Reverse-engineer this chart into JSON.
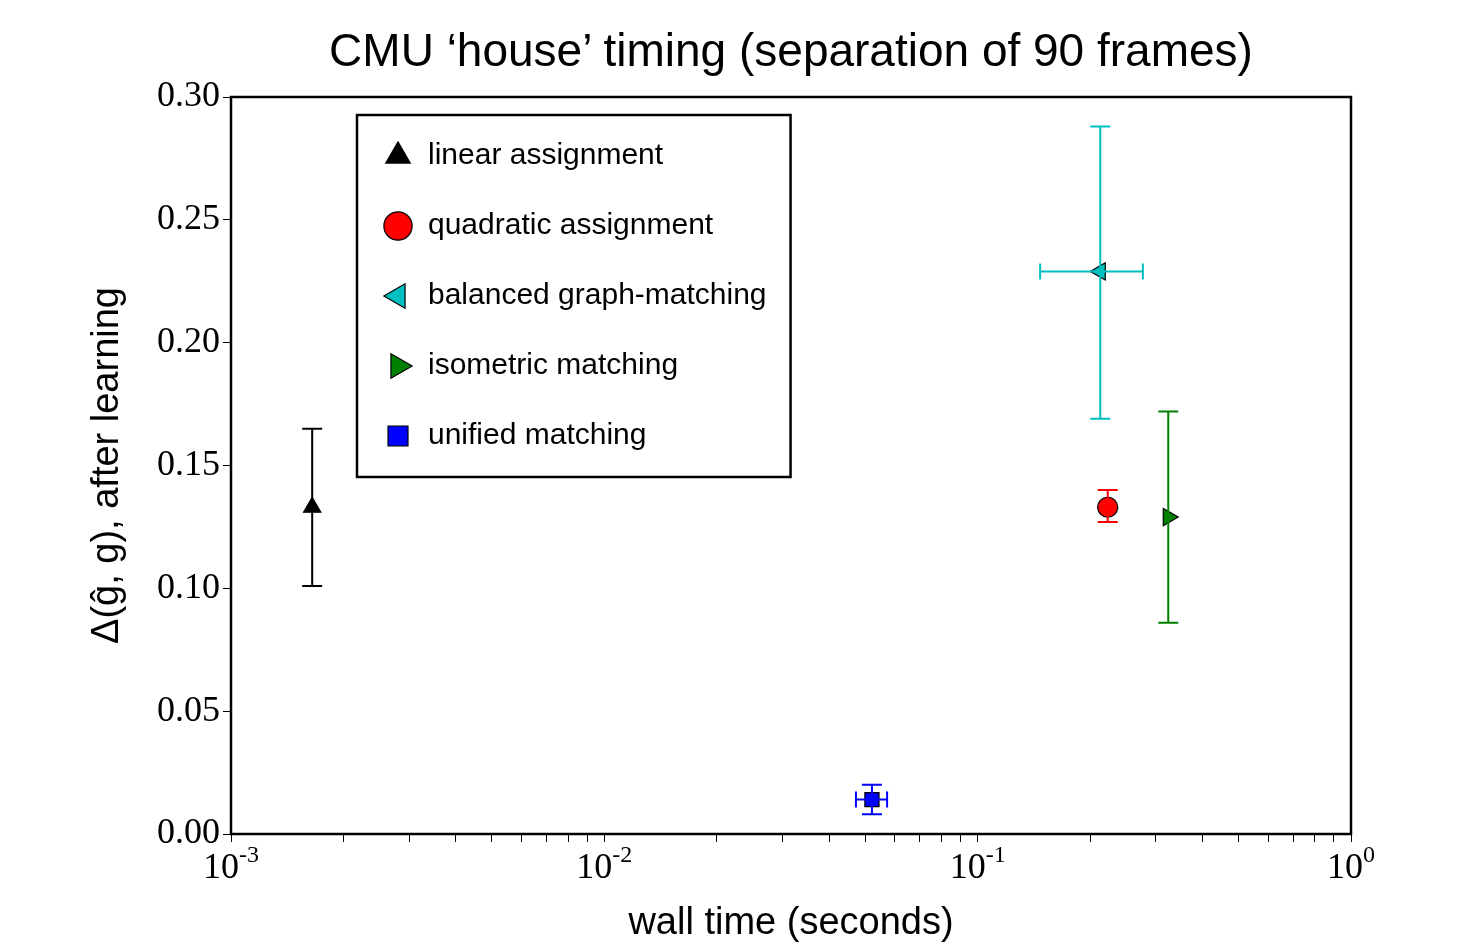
{
  "chart_data": {
    "type": "scatter",
    "title": "CMU ‘house’ timing (separation of 90 frames)",
    "xlabel": "wall time (seconds)",
    "ylabel": "Δ(ĝ, g), after learning",
    "log": "x",
    "grid": false,
    "legend": "top left",
    "xlim": [
      0.001,
      1
    ],
    "xticks": [
      {
        "value": 0.001,
        "label": "10$^{-3}$"
      },
      {
        "value": 0.002,
        "label": null
      },
      {
        "value": 0.003,
        "label": null
      },
      {
        "value": 0.004,
        "label": null
      },
      {
        "value": 0.005,
        "label": null
      },
      {
        "value": 0.006,
        "label": null
      },
      {
        "value": 0.007,
        "label": null
      },
      {
        "value": 0.008,
        "label": null
      },
      {
        "value": 0.009,
        "label": null
      },
      {
        "value": 0.01,
        "label": "10$^{-2}$"
      },
      {
        "value": 0.02,
        "label": null
      },
      {
        "value": 0.03,
        "label": null
      },
      {
        "value": 0.04,
        "label": null
      },
      {
        "value": 0.05,
        "label": null
      },
      {
        "value": 0.06,
        "label": null
      },
      {
        "value": 0.07,
        "label": null
      },
      {
        "value": 0.08,
        "label": null
      },
      {
        "value": 0.09,
        "label": null
      },
      {
        "value": 0.1,
        "label": "10$^{-1}$"
      },
      {
        "value": 0.2,
        "label": null
      },
      {
        "value": 0.3,
        "label": null
      },
      {
        "value": 0.4,
        "label": null
      },
      {
        "value": 0.5,
        "label": null
      },
      {
        "value": 0.6,
        "label": null
      },
      {
        "value": 0.7,
        "label": null
      },
      {
        "value": 0.8,
        "label": null
      },
      {
        "value": 0.9,
        "label": null
      },
      {
        "value": 1,
        "label": "10$^{0}$"
      }
    ],
    "ylim": [
      0,
      0.3
    ],
    "yticks": [
      {
        "value": 0,
        "label": "0.00"
      },
      {
        "value": 0.05,
        "label": "0.05"
      },
      {
        "value": 0.1,
        "label": "0.10"
      },
      {
        "value": 0.15,
        "label": "0.15"
      },
      {
        "value": 0.2,
        "label": "0.20"
      },
      {
        "value": 0.25,
        "label": "0.25"
      },
      {
        "value": 0.3,
        "label": "0.30"
      }
    ],
    "series": [
      {
        "name": "linear assignment",
        "color": "#000000",
        "marker": "triangle",
        "x": [
          0.00165
        ],
        "values": [
          0.133
        ],
        "errors": [
          [
            0.101,
            0.165
          ]
        ]
      },
      {
        "name": "quadratic assignment",
        "color": "#ff0000",
        "marker": "circle",
        "x": [
          0.223
        ],
        "values": [
          0.133
        ],
        "errors": [
          [
            0.127,
            0.14
          ]
        ]
      },
      {
        "name": "balanced graph-matching",
        "color": "#00bfbf",
        "marker": "triangle-left",
        "x": [
          0.213
        ],
        "values": [
          0.229
        ],
        "errors": [
          [
            0.169,
            0.288
          ]
        ],
        "xerrors": [
          [
            0.147,
            0.277
          ]
        ]
      },
      {
        "name": "isometric matching",
        "color": "#008000",
        "marker": "triangle-right",
        "x": [
          0.324
        ],
        "values": [
          0.129
        ],
        "errors": [
          [
            0.086,
            0.172
          ]
        ]
      },
      {
        "name": "unified matching",
        "color": "#0000ff",
        "marker": "square",
        "x": [
          0.0521
        ],
        "values": [
          0.014
        ],
        "errors": [
          [
            0.008,
            0.02
          ]
        ],
        "xerrors": [
          [
            0.0472,
            0.0572
          ]
        ]
      }
    ]
  }
}
